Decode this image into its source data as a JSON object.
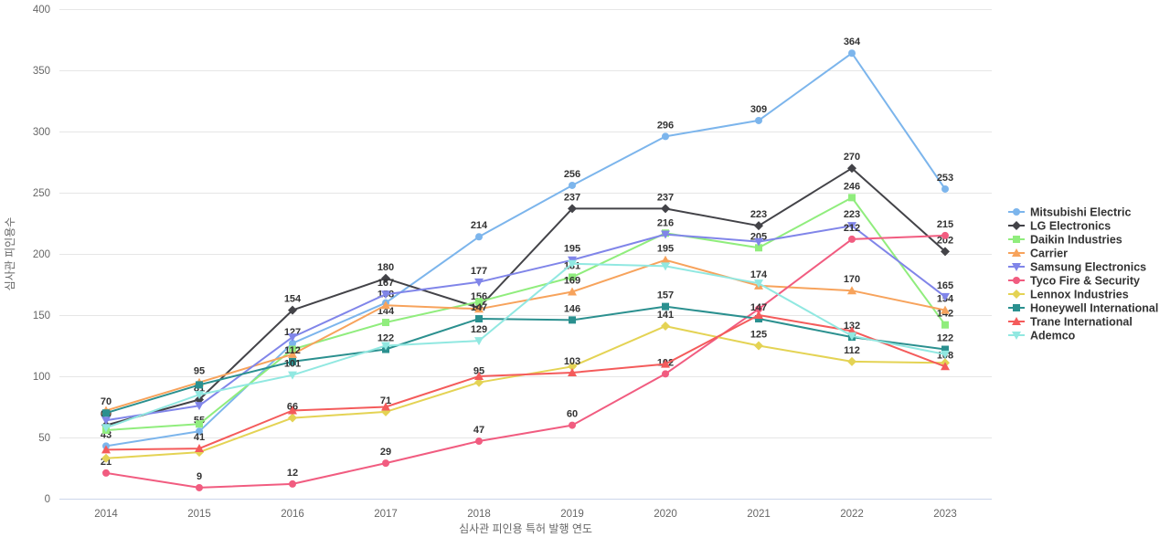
{
  "chart_data": {
    "type": "line",
    "title": "",
    "xlabel": "심사관 피인용 특허 발행 연도",
    "ylabel": "심사관 피인용수",
    "x": [
      2014,
      2015,
      2016,
      2017,
      2018,
      2019,
      2020,
      2021,
      2022,
      2023
    ],
    "ylim": [
      0,
      400
    ],
    "ytick_step": 50,
    "grid": "horizontal",
    "legend_position": "right",
    "colors": {
      "axis_text": "#666666",
      "grid_line": "#e6e6e6",
      "axis_line": "#ccd6eb",
      "data_label": "#333333",
      "legend_text": "#333333"
    },
    "series": [
      {
        "name": "Mitsubishi Electric",
        "color": "#7cb5ec",
        "marker": "circle",
        "values": [
          43,
          55,
          127,
          160,
          214,
          256,
          296,
          309,
          364,
          253
        ],
        "labeled": [
          true,
          true,
          true,
          false,
          true,
          true,
          true,
          true,
          true,
          true
        ]
      },
      {
        "name": "LG Electronics",
        "color": "#434348",
        "marker": "diamond",
        "values": [
          60,
          81,
          154,
          180,
          156,
          237,
          237,
          223,
          270,
          202
        ],
        "labeled": [
          true,
          true,
          true,
          true,
          true,
          true,
          true,
          true,
          true,
          true
        ]
      },
      {
        "name": "Daikin Industries",
        "color": "#90ed7d",
        "marker": "square",
        "values": [
          56,
          61,
          122,
          144,
          161,
          181,
          217,
          205,
          246,
          142
        ],
        "labeled": [
          false,
          false,
          false,
          true,
          false,
          true,
          false,
          true,
          true,
          true
        ]
      },
      {
        "name": "Carrier",
        "color": "#f7a35c",
        "marker": "triangle",
        "values": [
          72,
          95,
          118,
          158,
          155,
          169,
          195,
          174,
          170,
          154
        ],
        "labeled": [
          false,
          true,
          false,
          true,
          false,
          true,
          true,
          true,
          true,
          true
        ]
      },
      {
        "name": "Samsung Electronics",
        "color": "#8085e9",
        "marker": "triangle-down",
        "values": [
          64,
          76,
          132,
          167,
          177,
          195,
          216,
          210,
          223,
          165
        ],
        "labeled": [
          false,
          false,
          false,
          true,
          true,
          true,
          true,
          false,
          true,
          true
        ]
      },
      {
        "name": "Tyco Fire & Security",
        "color": "#f15c80",
        "marker": "circle",
        "values": [
          21,
          9,
          12,
          29,
          47,
          60,
          102,
          155,
          212,
          215
        ],
        "labeled": [
          true,
          true,
          true,
          true,
          true,
          true,
          true,
          false,
          true,
          true
        ]
      },
      {
        "name": "Lennox Industries",
        "color": "#e4d354",
        "marker": "diamond",
        "values": [
          33,
          38,
          66,
          71,
          95,
          108,
          141,
          125,
          112,
          111
        ],
        "labeled": [
          false,
          false,
          true,
          true,
          true,
          false,
          true,
          true,
          true,
          false
        ]
      },
      {
        "name": "Honeywell International",
        "color": "#2b908f",
        "marker": "square",
        "values": [
          70,
          93,
          112,
          122,
          147,
          146,
          157,
          147,
          132,
          122
        ],
        "labeled": [
          true,
          false,
          true,
          true,
          true,
          true,
          true,
          true,
          true,
          true
        ]
      },
      {
        "name": "Trane International",
        "color": "#f45b5b",
        "marker": "triangle",
        "values": [
          40,
          41,
          72,
          75,
          100,
          103,
          110,
          150,
          137,
          108
        ],
        "labeled": [
          false,
          true,
          false,
          false,
          false,
          true,
          false,
          false,
          false,
          true
        ]
      },
      {
        "name": "Ademco",
        "color": "#91e8e1",
        "marker": "triangle-down",
        "values": [
          58,
          85,
          101,
          125,
          129,
          192,
          190,
          176,
          133,
          118
        ],
        "labeled": [
          false,
          false,
          true,
          false,
          true,
          false,
          false,
          false,
          false,
          false
        ]
      }
    ]
  }
}
